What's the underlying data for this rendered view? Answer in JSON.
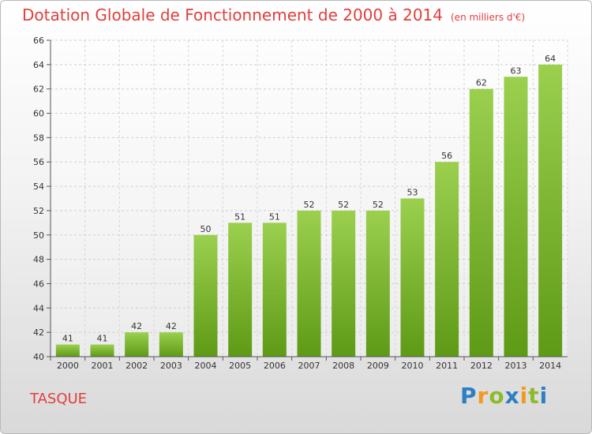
{
  "title": "Dotation Globale de Fonctionnement de 2000 à 2014",
  "subtitle": "(en milliers d'€)",
  "commune": "TASQUE",
  "brand": {
    "letters": [
      {
        "ch": "P",
        "color": "#2d7fc1"
      },
      {
        "ch": "r",
        "color": "#f29a1f"
      },
      {
        "ch": "o",
        "color": "#8dbb2a"
      },
      {
        "ch": "x",
        "color": "#2d7fc1"
      },
      {
        "ch": "i",
        "color": "#f29a1f"
      },
      {
        "ch": "t",
        "color": "#8dbb2a"
      },
      {
        "ch": "i",
        "color": "#2d7fc1"
      }
    ]
  },
  "colors": {
    "accent": "#e0403c",
    "bar_light": "#9bd04f",
    "bar_dark": "#5e9a16"
  },
  "chart_data": {
    "type": "bar",
    "title": "Dotation Globale de Fonctionnement de 2000 à 2014",
    "subtitle": "(en milliers d'€)",
    "categories": [
      "2000",
      "2001",
      "2002",
      "2003",
      "2004",
      "2005",
      "2006",
      "2007",
      "2008",
      "2009",
      "2010",
      "2011",
      "2012",
      "2013",
      "2014"
    ],
    "values": [
      41,
      41,
      42,
      42,
      50,
      51,
      51,
      52,
      52,
      52,
      53,
      56,
      62,
      63,
      64
    ],
    "ylim": [
      40,
      66
    ],
    "yticks": [
      40,
      42,
      44,
      46,
      48,
      50,
      52,
      54,
      56,
      58,
      60,
      62,
      64,
      66
    ],
    "grid": true,
    "xlabel": "",
    "ylabel": ""
  }
}
